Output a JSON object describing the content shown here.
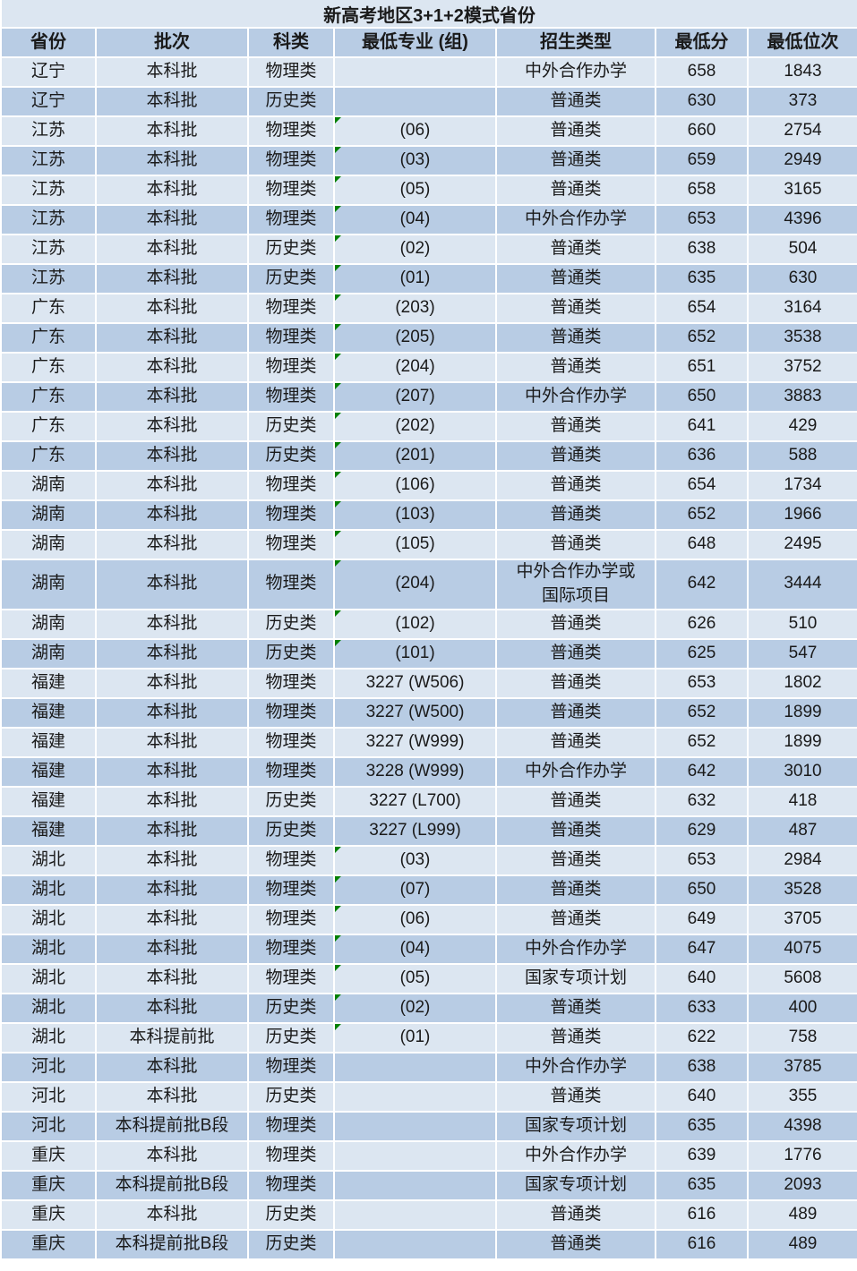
{
  "title": "新高考地区3+1+2模式省份",
  "colors": {
    "title_bg": "#dce6f1",
    "header_bg": "#b8cce4",
    "row_light": "#dce6f1",
    "row_dark": "#b8cce4",
    "gridline": "#ffffff",
    "text": "#1a1a1a",
    "flag_triangle_green": "#008000"
  },
  "columns": [
    {
      "key": "province",
      "label": "省份"
    },
    {
      "key": "batch",
      "label": "批次"
    },
    {
      "key": "subject",
      "label": "科类"
    },
    {
      "key": "major_group",
      "label": "最低专业 (组)"
    },
    {
      "key": "admission_type",
      "label": "招生类型"
    },
    {
      "key": "min_score",
      "label": "最低分"
    },
    {
      "key": "min_rank",
      "label": "最低位次"
    }
  ],
  "rows": [
    {
      "province": "辽宁",
      "batch": "本科批",
      "subject": "物理类",
      "major_group": "",
      "admission_type": "中外合作办学",
      "min_score": 658,
      "min_rank": 1843,
      "flag": false
    },
    {
      "province": "辽宁",
      "batch": "本科批",
      "subject": "历史类",
      "major_group": "",
      "admission_type": "普通类",
      "min_score": 630,
      "min_rank": 373,
      "flag": false
    },
    {
      "province": "江苏",
      "batch": "本科批",
      "subject": "物理类",
      "major_group": "(06)",
      "admission_type": "普通类",
      "min_score": 660,
      "min_rank": 2754,
      "flag": true
    },
    {
      "province": "江苏",
      "batch": "本科批",
      "subject": "物理类",
      "major_group": "(03)",
      "admission_type": "普通类",
      "min_score": 659,
      "min_rank": 2949,
      "flag": true
    },
    {
      "province": "江苏",
      "batch": "本科批",
      "subject": "物理类",
      "major_group": "(05)",
      "admission_type": "普通类",
      "min_score": 658,
      "min_rank": 3165,
      "flag": true
    },
    {
      "province": "江苏",
      "batch": "本科批",
      "subject": "物理类",
      "major_group": "(04)",
      "admission_type": "中外合作办学",
      "min_score": 653,
      "min_rank": 4396,
      "flag": true
    },
    {
      "province": "江苏",
      "batch": "本科批",
      "subject": "历史类",
      "major_group": "(02)",
      "admission_type": "普通类",
      "min_score": 638,
      "min_rank": 504,
      "flag": true
    },
    {
      "province": "江苏",
      "batch": "本科批",
      "subject": "历史类",
      "major_group": "(01)",
      "admission_type": "普通类",
      "min_score": 635,
      "min_rank": 630,
      "flag": true
    },
    {
      "province": "广东",
      "batch": "本科批",
      "subject": "物理类",
      "major_group": "(203)",
      "admission_type": "普通类",
      "min_score": 654,
      "min_rank": 3164,
      "flag": true
    },
    {
      "province": "广东",
      "batch": "本科批",
      "subject": "物理类",
      "major_group": "(205)",
      "admission_type": "普通类",
      "min_score": 652,
      "min_rank": 3538,
      "flag": true
    },
    {
      "province": "广东",
      "batch": "本科批",
      "subject": "物理类",
      "major_group": "(204)",
      "admission_type": "普通类",
      "min_score": 651,
      "min_rank": 3752,
      "flag": true
    },
    {
      "province": "广东",
      "batch": "本科批",
      "subject": "物理类",
      "major_group": "(207)",
      "admission_type": "中外合作办学",
      "min_score": 650,
      "min_rank": 3883,
      "flag": true
    },
    {
      "province": "广东",
      "batch": "本科批",
      "subject": "历史类",
      "major_group": "(202)",
      "admission_type": "普通类",
      "min_score": 641,
      "min_rank": 429,
      "flag": true
    },
    {
      "province": "广东",
      "batch": "本科批",
      "subject": "历史类",
      "major_group": "(201)",
      "admission_type": "普通类",
      "min_score": 636,
      "min_rank": 588,
      "flag": true
    },
    {
      "province": "湖南",
      "batch": "本科批",
      "subject": "物理类",
      "major_group": "(106)",
      "admission_type": "普通类",
      "min_score": 654,
      "min_rank": 1734,
      "flag": true
    },
    {
      "province": "湖南",
      "batch": "本科批",
      "subject": "物理类",
      "major_group": "(103)",
      "admission_type": "普通类",
      "min_score": 652,
      "min_rank": 1966,
      "flag": true
    },
    {
      "province": "湖南",
      "batch": "本科批",
      "subject": "物理类",
      "major_group": "(105)",
      "admission_type": "普通类",
      "min_score": 648,
      "min_rank": 2495,
      "flag": true
    },
    {
      "province": "湖南",
      "batch": "本科批",
      "subject": "物理类",
      "major_group": "(204)",
      "admission_type": "中外合作办学或\n国际项目",
      "min_score": 642,
      "min_rank": 3444,
      "flag": true
    },
    {
      "province": "湖南",
      "batch": "本科批",
      "subject": "历史类",
      "major_group": "(102)",
      "admission_type": "普通类",
      "min_score": 626,
      "min_rank": 510,
      "flag": true
    },
    {
      "province": "湖南",
      "batch": "本科批",
      "subject": "历史类",
      "major_group": "(101)",
      "admission_type": "普通类",
      "min_score": 625,
      "min_rank": 547,
      "flag": true
    },
    {
      "province": "福建",
      "batch": "本科批",
      "subject": "物理类",
      "major_group": "3227 (W506)",
      "admission_type": "普通类",
      "min_score": 653,
      "min_rank": 1802,
      "flag": false
    },
    {
      "province": "福建",
      "batch": "本科批",
      "subject": "物理类",
      "major_group": "3227 (W500)",
      "admission_type": "普通类",
      "min_score": 652,
      "min_rank": 1899,
      "flag": false
    },
    {
      "province": "福建",
      "batch": "本科批",
      "subject": "物理类",
      "major_group": "3227 (W999)",
      "admission_type": "普通类",
      "min_score": 652,
      "min_rank": 1899,
      "flag": false
    },
    {
      "province": "福建",
      "batch": "本科批",
      "subject": "物理类",
      "major_group": "3228 (W999)",
      "admission_type": "中外合作办学",
      "min_score": 642,
      "min_rank": 3010,
      "flag": false
    },
    {
      "province": "福建",
      "batch": "本科批",
      "subject": "历史类",
      "major_group": "3227 (L700)",
      "admission_type": "普通类",
      "min_score": 632,
      "min_rank": 418,
      "flag": false
    },
    {
      "province": "福建",
      "batch": "本科批",
      "subject": "历史类",
      "major_group": "3227 (L999)",
      "admission_type": "普通类",
      "min_score": 629,
      "min_rank": 487,
      "flag": false
    },
    {
      "province": "湖北",
      "batch": "本科批",
      "subject": "物理类",
      "major_group": "(03)",
      "admission_type": "普通类",
      "min_score": 653,
      "min_rank": 2984,
      "flag": true
    },
    {
      "province": "湖北",
      "batch": "本科批",
      "subject": "物理类",
      "major_group": "(07)",
      "admission_type": "普通类",
      "min_score": 650,
      "min_rank": 3528,
      "flag": true
    },
    {
      "province": "湖北",
      "batch": "本科批",
      "subject": "物理类",
      "major_group": "(06)",
      "admission_type": "普通类",
      "min_score": 649,
      "min_rank": 3705,
      "flag": true
    },
    {
      "province": "湖北",
      "batch": "本科批",
      "subject": "物理类",
      "major_group": "(04)",
      "admission_type": "中外合作办学",
      "min_score": 647,
      "min_rank": 4075,
      "flag": true
    },
    {
      "province": "湖北",
      "batch": "本科批",
      "subject": "物理类",
      "major_group": "(05)",
      "admission_type": "国家专项计划",
      "min_score": 640,
      "min_rank": 5608,
      "flag": true
    },
    {
      "province": "湖北",
      "batch": "本科批",
      "subject": "历史类",
      "major_group": "(02)",
      "admission_type": "普通类",
      "min_score": 633,
      "min_rank": 400,
      "flag": true
    },
    {
      "province": "湖北",
      "batch": "本科提前批",
      "subject": "历史类",
      "major_group": "(01)",
      "admission_type": "普通类",
      "min_score": 622,
      "min_rank": 758,
      "flag": true
    },
    {
      "province": "河北",
      "batch": "本科批",
      "subject": "物理类",
      "major_group": "",
      "admission_type": "中外合作办学",
      "min_score": 638,
      "min_rank": 3785,
      "flag": false
    },
    {
      "province": "河北",
      "batch": "本科批",
      "subject": "历史类",
      "major_group": "",
      "admission_type": "普通类",
      "min_score": 640,
      "min_rank": 355,
      "flag": false
    },
    {
      "province": "河北",
      "batch": "本科提前批B段",
      "subject": "物理类",
      "major_group": "",
      "admission_type": "国家专项计划",
      "min_score": 635,
      "min_rank": 4398,
      "flag": false
    },
    {
      "province": "重庆",
      "batch": "本科批",
      "subject": "物理类",
      "major_group": "",
      "admission_type": "中外合作办学",
      "min_score": 639,
      "min_rank": 1776,
      "flag": false
    },
    {
      "province": "重庆",
      "batch": "本科提前批B段",
      "subject": "物理类",
      "major_group": "",
      "admission_type": "国家专项计划",
      "min_score": 635,
      "min_rank": 2093,
      "flag": false
    },
    {
      "province": "重庆",
      "batch": "本科批",
      "subject": "历史类",
      "major_group": "",
      "admission_type": "普通类",
      "min_score": 616,
      "min_rank": 489,
      "flag": false
    },
    {
      "province": "重庆",
      "batch": "本科提前批B段",
      "subject": "历史类",
      "major_group": "",
      "admission_type": "普通类",
      "min_score": 616,
      "min_rank": 489,
      "flag": false
    }
  ]
}
